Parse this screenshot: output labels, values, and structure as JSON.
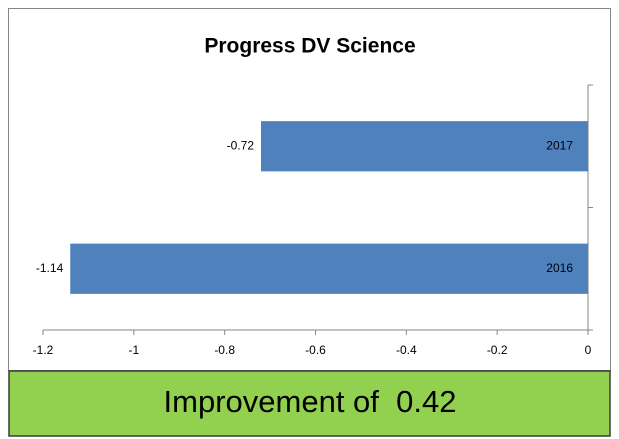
{
  "chart_data": {
    "type": "bar",
    "orientation": "horizontal",
    "title": "Progress DV Science",
    "categories": [
      "2016",
      "2017"
    ],
    "values": [
      -1.14,
      -0.72
    ],
    "color": "#4f81bd",
    "xlim": [
      -1.2,
      0
    ],
    "xticks": [
      -1.2,
      -1,
      -0.8,
      -0.6,
      -0.4,
      -0.2,
      0
    ],
    "annotation": "Improvement of  0.42",
    "annotation_color": "#92d050"
  }
}
